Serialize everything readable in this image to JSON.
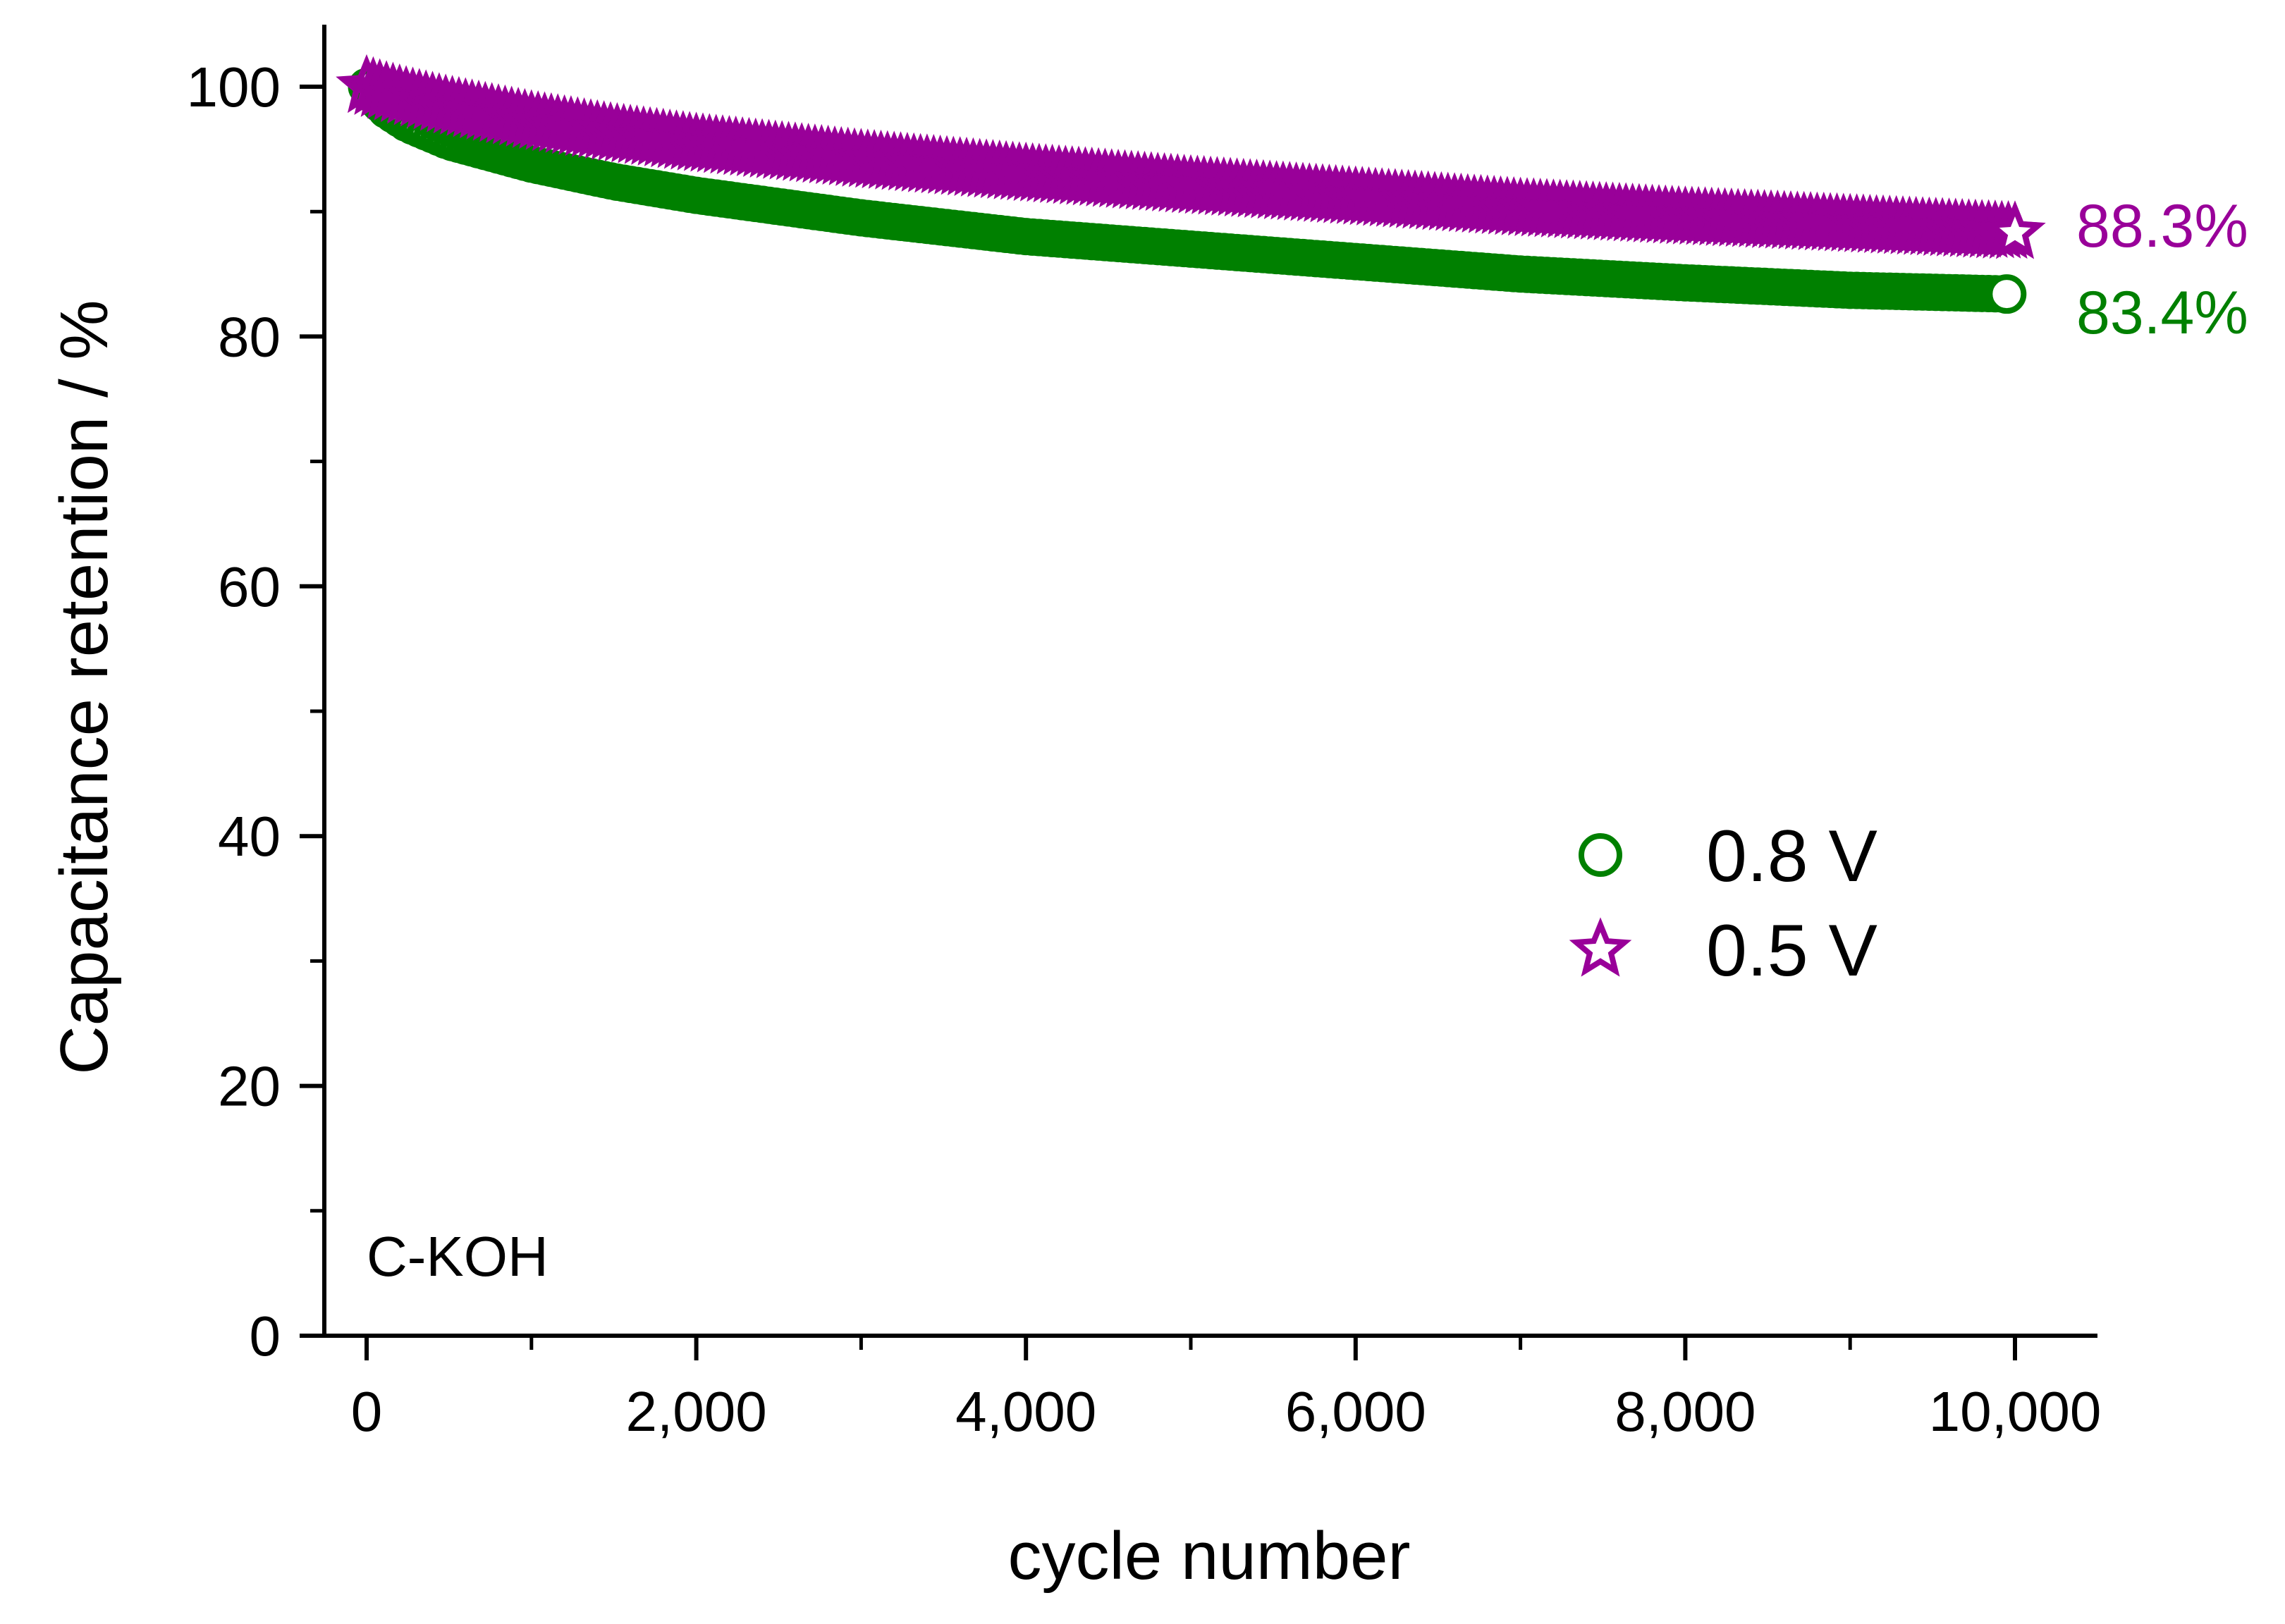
{
  "chart_data": {
    "type": "scatter",
    "title": "",
    "xlabel": "cycle number",
    "ylabel": "Capacitance retention / %",
    "xlim": [
      -400,
      10500
    ],
    "ylim": [
      0,
      105
    ],
    "x_ticks": [
      0,
      2000,
      4000,
      6000,
      8000,
      10000
    ],
    "x_tick_labels": [
      "0",
      "2,000",
      "4,000",
      "6,000",
      "8,000",
      "10,000"
    ],
    "y_ticks": [
      0,
      20,
      40,
      60,
      80,
      100
    ],
    "y_tick_labels": [
      "0",
      "20",
      "40",
      "60",
      "80",
      "100"
    ],
    "sample_label": "C-KOH",
    "legend_position": "center-right",
    "series": [
      {
        "name": "0.8 V",
        "marker": "circle",
        "color": "#008000",
        "x": [
          0,
          100,
          250,
          500,
          1000,
          1500,
          2000,
          3000,
          4000,
          5000,
          6000,
          7000,
          8000,
          9000,
          9950
        ],
        "y": [
          100,
          98.3,
          97,
          95.6,
          93.8,
          92.4,
          91.3,
          89.5,
          88.0,
          87.0,
          86.0,
          85.0,
          84.3,
          83.7,
          83.4
        ],
        "end_label": "83.4%"
      },
      {
        "name": "0.5 V",
        "marker": "star",
        "color": "#990099",
        "x": [
          0,
          100,
          250,
          500,
          1000,
          1500,
          2000,
          3000,
          4000,
          5000,
          6000,
          7000,
          8000,
          9000,
          10000
        ],
        "y": [
          100,
          99.6,
          99.1,
          98.4,
          97.2,
          96.2,
          95.4,
          94.1,
          93.0,
          92.0,
          91.1,
          90.2,
          89.5,
          88.9,
          88.3
        ],
        "end_label": "88.3%"
      }
    ]
  }
}
